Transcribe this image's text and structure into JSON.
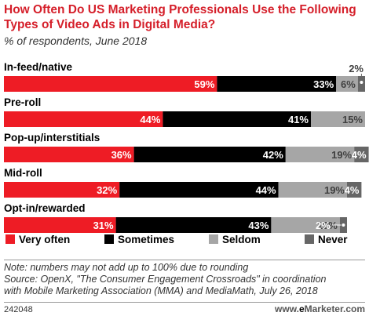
{
  "title": "How Often Do US Marketing Professionals Use the Following Types of Video Ads in Digital Media?",
  "subtitle": "% of respondents, June 2018",
  "chart_data": {
    "type": "bar",
    "orientation": "horizontal",
    "stacked": true,
    "categories": [
      "In-feed/native",
      "Pre-roll",
      "Pop-up/interstitials",
      "Mid-roll",
      "Opt-in/rewarded"
    ],
    "series": [
      {
        "name": "Very often",
        "color": "#ee1c25",
        "values": [
          59,
          44,
          36,
          32,
          31
        ]
      },
      {
        "name": "Sometimes",
        "color": "#000000",
        "values": [
          33,
          41,
          42,
          44,
          43
        ]
      },
      {
        "name": "Seldom",
        "color": "#a6a6a6",
        "values": [
          6,
          15,
          19,
          19,
          19
        ]
      },
      {
        "name": "Never",
        "color": "#666666",
        "values": [
          2,
          0,
          4,
          4,
          2
        ]
      }
    ],
    "data_labels": [
      [
        "59%",
        "33%",
        "6%",
        "2%"
      ],
      [
        "44%",
        "41%",
        "15%",
        ""
      ],
      [
        "36%",
        "42%",
        "19%",
        "4%"
      ],
      [
        "32%",
        "44%",
        "19%",
        "4%"
      ],
      [
        "31%",
        "43%",
        "19%",
        "2%"
      ]
    ],
    "legend_placement": "bottom",
    "xlim": [
      0,
      100
    ]
  },
  "notes": [
    "Note: numbers may not add up to 100% due to rounding",
    "Source: OpenX, \"The Consumer Engagement Crossroads\" in coordination",
    "with Mobile Marketing Association (MMA) and MediaMath, July 26, 2018"
  ],
  "footer": {
    "id": "242048",
    "brand_prefix": "www.",
    "brand_e": "e",
    "brand_rest": "Marketer.com"
  }
}
